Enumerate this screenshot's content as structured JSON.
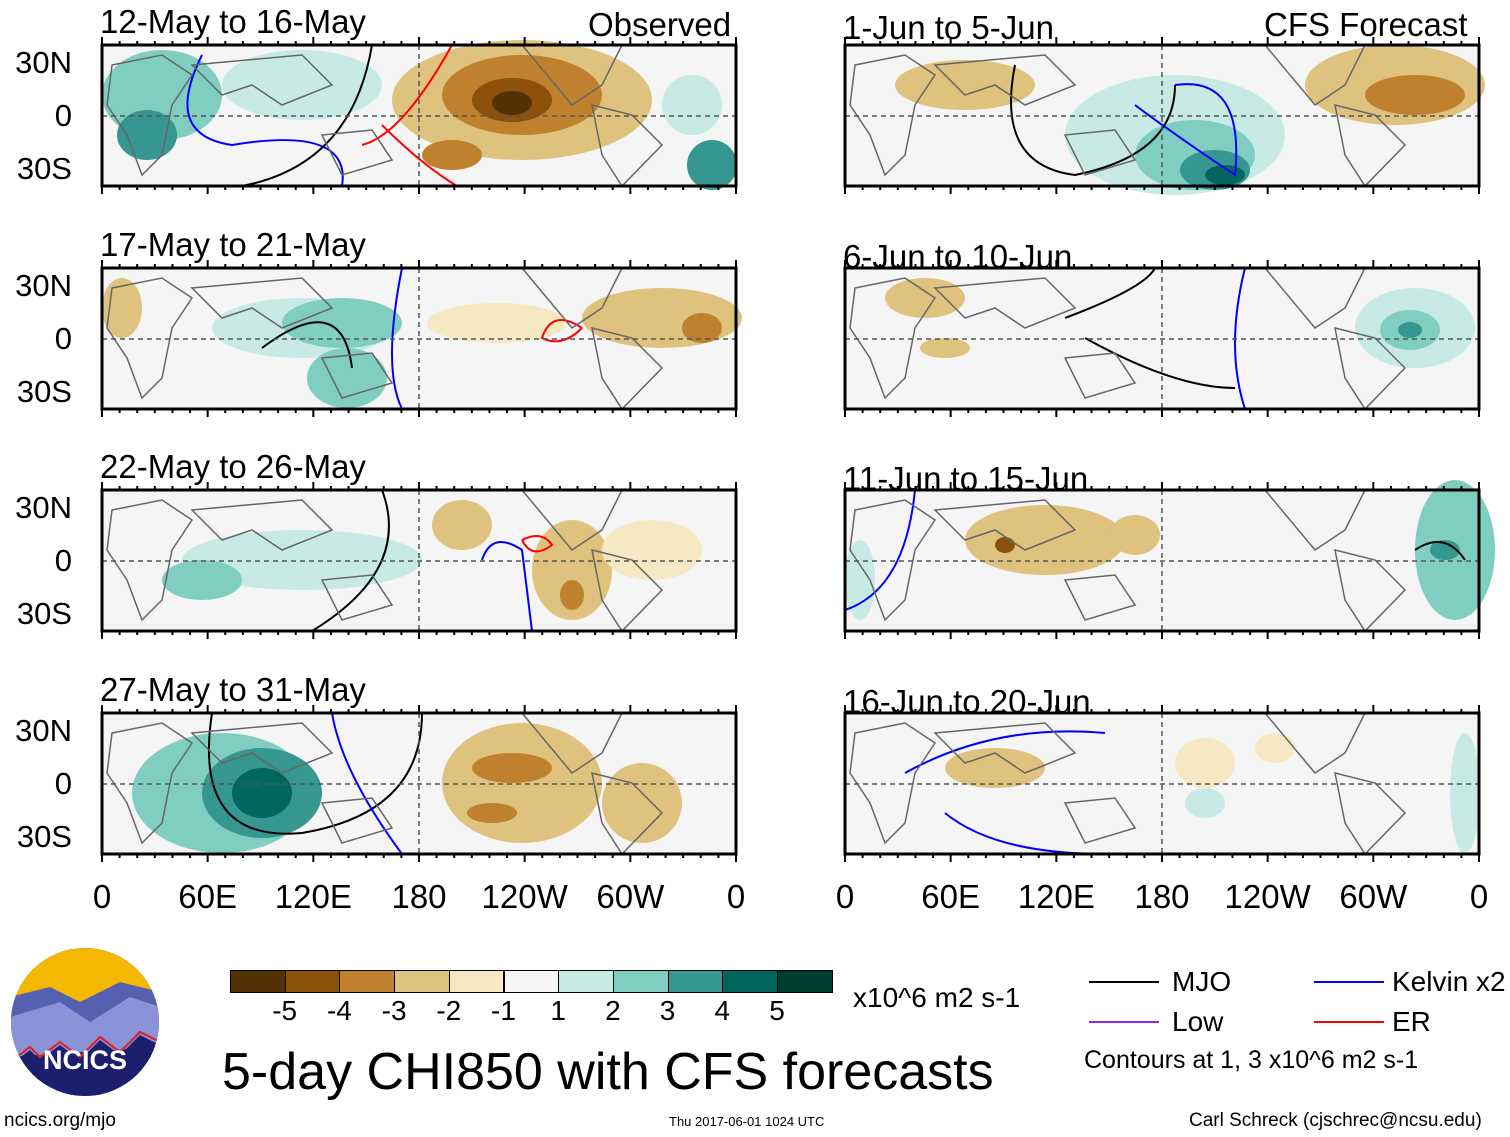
{
  "observed_label": "Observed",
  "forecast_label": "CFS Forecast",
  "panels_left": [
    {
      "title": "12-May to 16-May"
    },
    {
      "title": "17-May to 21-May"
    },
    {
      "title": "22-May to 26-May"
    },
    {
      "title": "27-May to 31-May"
    }
  ],
  "panels_right": [
    {
      "title": "1-Jun to 5-Jun"
    },
    {
      "title": "6-Jun to 10-Jun"
    },
    {
      "title": "11-Jun to 15-Jun"
    },
    {
      "title": "16-Jun to 20-Jun"
    }
  ],
  "lat_labels": [
    "30N",
    "0",
    "30S"
  ],
  "lon_labels": [
    "0",
    "60E",
    "120E",
    "180",
    "120W",
    "60W",
    "0"
  ],
  "colorbar": {
    "colors": [
      "#543005",
      "#8c510a",
      "#bf812d",
      "#dfc27d",
      "#f6e8c3",
      "#f5f5f5",
      "#c7eae5",
      "#80cdc1",
      "#35978f",
      "#01665e",
      "#003c30"
    ],
    "ticks": [
      "-5",
      "-4",
      "-3",
      "-2",
      "-1",
      "1",
      "2",
      "3",
      "4",
      "5"
    ],
    "units": "x10^6 m2 s-1"
  },
  "legend": {
    "items": [
      {
        "label": "MJO",
        "color": "#000000"
      },
      {
        "label": "Kelvin x2",
        "color": "#0000ff"
      },
      {
        "label": "Low",
        "color": "#a020f0"
      },
      {
        "label": "ER",
        "color": "#ff0000"
      }
    ],
    "contours_note": "Contours at 1, 3 x10^6 m2 s-1"
  },
  "title": "5-day CHI850 with CFS forecasts",
  "logo_text": "NCICS",
  "url": "ncics.org/mjo",
  "timestamp": "Thu 2017-06-01 1024 UTC",
  "credit": "Carl Schreck (cjschrec@ncsu.edu)"
}
